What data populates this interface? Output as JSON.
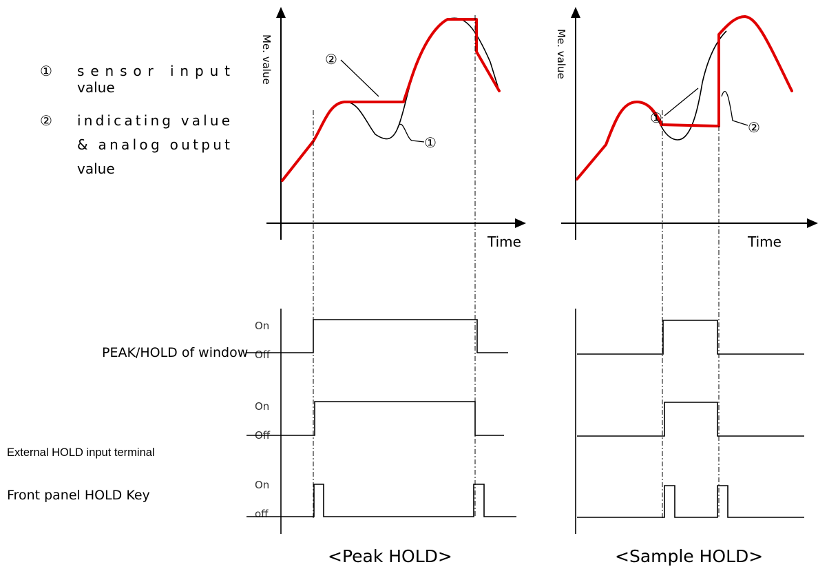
{
  "legend": {
    "item1_marker": "①",
    "item1_text_line1": "sensor input",
    "item1_text_line2": "value",
    "item2_marker": "②",
    "item2_text_line1": "indicating value",
    "item2_text_line2": "& analog output",
    "item2_text_line3": "value"
  },
  "signals": {
    "peak_hold_window": "PEAK/HOLD of window",
    "external_hold": "External HOLD input terminal",
    "front_panel_key": "Front panel HOLD Key"
  },
  "levels": {
    "on": "On",
    "off": "Off",
    "off_lower": "off"
  },
  "charts": {
    "y_label": "Me. value",
    "x_label": "Time",
    "marker1": "①",
    "marker2": "②",
    "peak_caption": "<Peak HOLD>",
    "sample_caption": "<Sample HOLD>"
  },
  "colors": {
    "sensor_curve": "#000000",
    "indicating_curve": "#e00000"
  }
}
